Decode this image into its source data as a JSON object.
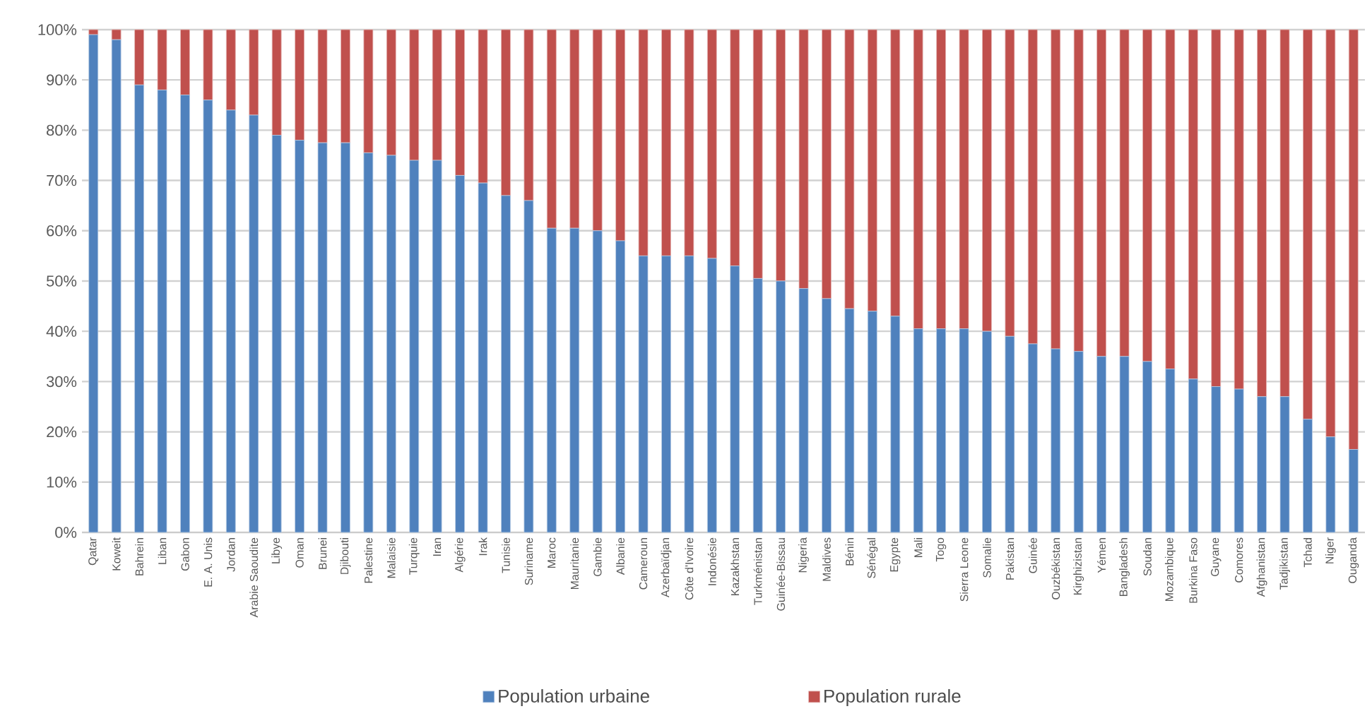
{
  "chart_data": {
    "type": "bar",
    "stacked": true,
    "grid": "y",
    "legend": "bottom",
    "categories": [
      "Qatar",
      "Koweit",
      "Bahrein",
      "Liban",
      "Gabon",
      "E. A. Unis",
      "Jordan",
      "Arabie Saoudite",
      "Libye",
      "Oman",
      "Brunei",
      "Djibouti",
      "Palestine",
      "Malaisie",
      "Turquie",
      "Iran",
      "Algérie",
      "Irak",
      "Tunisie",
      "Suriname",
      "Maroc",
      "Mauritanie",
      "Gambie",
      "Albanie",
      "Cameroun",
      "Azerbaïdjan",
      "Côte d'Ivoire",
      "Indonésie",
      "Kazakhstan",
      "Turkménistan",
      "Guinée-Bissau",
      "Nigeria",
      "Maldives",
      "Bénin",
      "Sénégal",
      "Egypte",
      "Mali",
      "Togo",
      "Sierra Leone",
      "Somalie",
      "Pakistan",
      "Guinée",
      "Ouzbékistan",
      "Kirghizistan",
      "Yémen",
      "Bangladesh",
      "Soudan",
      "Mozambique",
      "Burkina Faso",
      "Guyane",
      "Comores",
      "Afghanistan",
      "Tadjikistan",
      "Tchad",
      "Niger",
      "Ouganda"
    ],
    "series": [
      {
        "name": "Population urbaine",
        "color": "#4f81bd",
        "values": [
          99,
          98,
          89,
          88,
          87,
          86,
          84,
          83,
          79,
          78,
          77.5,
          77.5,
          75.5,
          75,
          74,
          74,
          71,
          69.5,
          67,
          66,
          60.5,
          60.5,
          60,
          58,
          55,
          55,
          55,
          54.5,
          53,
          50.5,
          50,
          48.5,
          46.5,
          44.5,
          44,
          43,
          40.5,
          40.5,
          40.5,
          40,
          39,
          37.5,
          36.5,
          36,
          35,
          35,
          34,
          32.5,
          30.5,
          29,
          28.5,
          27,
          27,
          22.5,
          19,
          16.5
        ]
      },
      {
        "name": "Population rurale",
        "color": "#c0504d",
        "values": [
          1,
          2,
          11,
          12,
          13,
          14,
          16,
          17,
          21,
          22,
          22.5,
          22.5,
          24.5,
          25,
          26,
          26,
          29,
          30.5,
          33,
          34,
          39.5,
          39.5,
          40,
          42,
          45,
          45,
          45,
          45.5,
          47,
          49.5,
          50,
          51.5,
          53.5,
          55.5,
          56,
          57,
          59.5,
          59.5,
          59.5,
          60,
          61,
          62.5,
          63.5,
          64,
          65,
          65,
          66,
          67.5,
          69.5,
          71,
          71.5,
          73,
          73,
          77.5,
          81,
          83.5
        ]
      }
    ],
    "ylim": [
      0,
      100
    ],
    "yticks": [
      {
        "value": 0,
        "label": "0%"
      },
      {
        "value": 10,
        "label": "10%"
      },
      {
        "value": 20,
        "label": "20%"
      },
      {
        "value": 30,
        "label": "30%"
      },
      {
        "value": 40,
        "label": "40%"
      },
      {
        "value": 50,
        "label": "50%"
      },
      {
        "value": 60,
        "label": "60%"
      },
      {
        "value": 70,
        "label": "70%"
      },
      {
        "value": 80,
        "label": "80%"
      },
      {
        "value": 90,
        "label": "90%"
      },
      {
        "value": 100,
        "label": "100%"
      }
    ]
  }
}
